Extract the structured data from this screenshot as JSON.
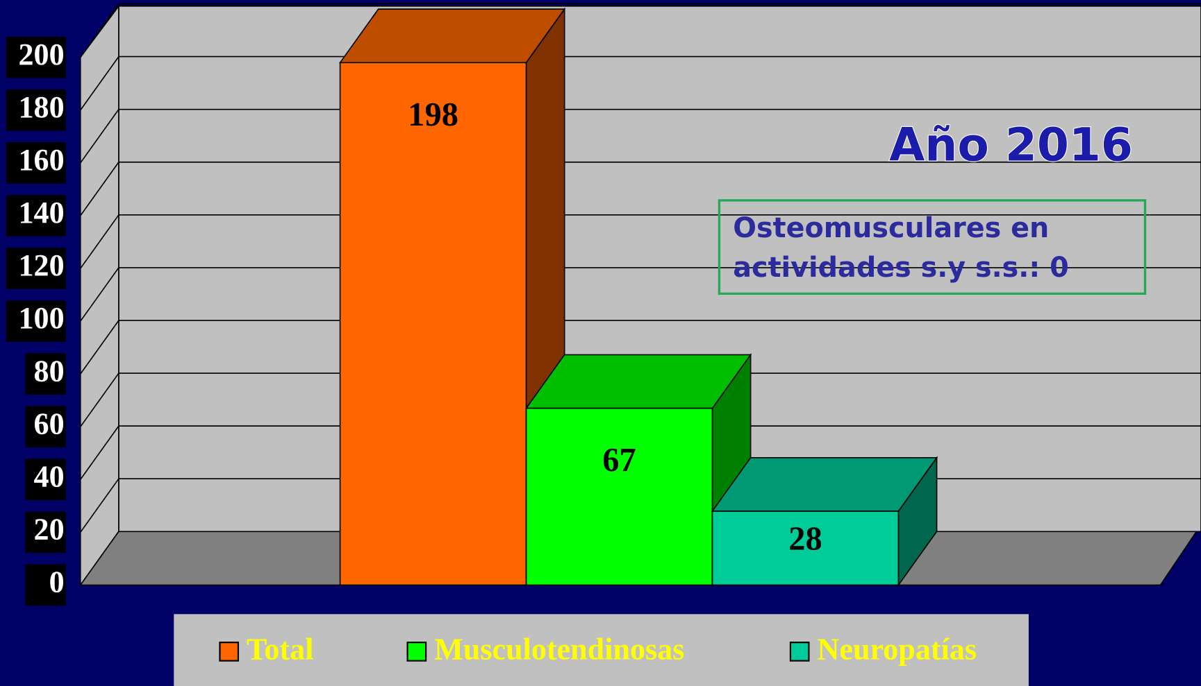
{
  "chart_data": {
    "type": "bar",
    "title": "Año 2016",
    "annotation": [
      "Osteomusculares en",
      "actividades s.y s.s.: 0"
    ],
    "categories": [
      null
    ],
    "series": [
      {
        "name": "Total",
        "color": "#ff6600",
        "values": [
          198
        ]
      },
      {
        "name": "Musculotendinosas",
        "color": "#00ff00",
        "values": [
          67
        ]
      },
      {
        "name": "Neuropatías",
        "color": "#00cc99",
        "values": [
          28
        ]
      }
    ],
    "ylim": [
      0,
      200
    ],
    "yticks": [
      0,
      20,
      40,
      60,
      80,
      100,
      120,
      140,
      160,
      180,
      200
    ],
    "grid": true,
    "legend": "bottom"
  }
}
